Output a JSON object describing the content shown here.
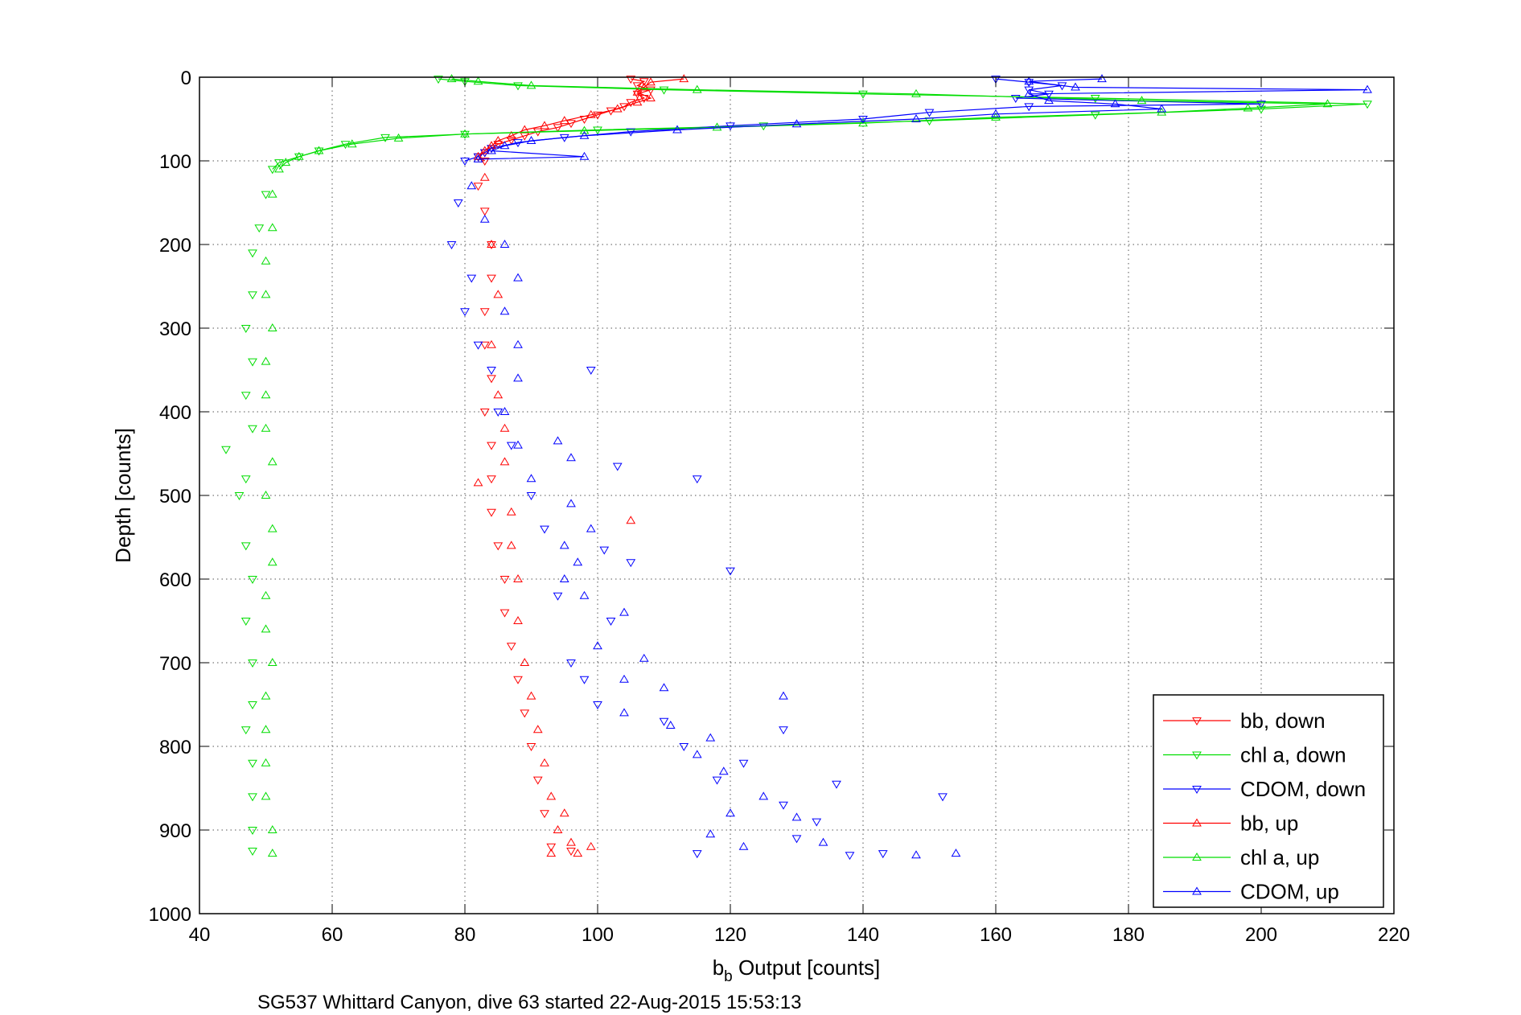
{
  "chart_data": {
    "type": "scatter",
    "xlabel_main": "b",
    "xlabel_sub": "b",
    "xlabel_rest": " Output [counts]",
    "ylabel": "Depth [counts]",
    "caption": "SG537 Whittard Canyon, dive 63 started 22-Aug-2015 15:53:13",
    "xlim": [
      40,
      220
    ],
    "ylim": [
      0,
      1000
    ],
    "y_reversed": true,
    "grid": true,
    "legend_position": "bottom-right",
    "xticks": [
      40,
      60,
      80,
      100,
      120,
      140,
      160,
      180,
      200,
      220
    ],
    "yticks": [
      0,
      100,
      200,
      300,
      400,
      500,
      600,
      700,
      800,
      900,
      1000
    ],
    "series": [
      {
        "name": "bb, down",
        "color": "#ff0000",
        "marker": "triangle-down",
        "connected_until": 100,
        "points": [
          [
            105,
            2
          ],
          [
            107,
            5
          ],
          [
            106,
            10
          ],
          [
            108,
            15
          ],
          [
            106,
            20
          ],
          [
            107,
            25
          ],
          [
            105,
            30
          ],
          [
            104,
            35
          ],
          [
            102,
            40
          ],
          [
            100,
            45
          ],
          [
            98,
            50
          ],
          [
            96,
            55
          ],
          [
            94,
            60
          ],
          [
            91,
            65
          ],
          [
            89,
            70
          ],
          [
            87,
            75
          ],
          [
            85,
            80
          ],
          [
            84,
            85
          ],
          [
            83,
            90
          ],
          [
            82,
            95
          ],
          [
            83,
            100
          ],
          [
            82,
            130
          ],
          [
            83,
            160
          ],
          [
            84,
            200
          ],
          [
            84,
            240
          ],
          [
            83,
            280
          ],
          [
            83,
            320
          ],
          [
            84,
            360
          ],
          [
            83,
            400
          ],
          [
            84,
            440
          ],
          [
            84,
            480
          ],
          [
            84,
            520
          ],
          [
            85,
            560
          ],
          [
            86,
            600
          ],
          [
            86,
            640
          ],
          [
            87,
            680
          ],
          [
            88,
            720
          ],
          [
            89,
            760
          ],
          [
            90,
            800
          ],
          [
            91,
            840
          ],
          [
            92,
            880
          ],
          [
            93,
            920
          ],
          [
            96,
            925
          ]
        ]
      },
      {
        "name": "chl a, down",
        "color": "#00dd00",
        "marker": "triangle-down",
        "connected_until": 110,
        "points": [
          [
            76,
            2
          ],
          [
            80,
            5
          ],
          [
            88,
            10
          ],
          [
            110,
            15
          ],
          [
            140,
            20
          ],
          [
            175,
            25
          ],
          [
            216,
            32
          ],
          [
            200,
            38
          ],
          [
            175,
            45
          ],
          [
            150,
            52
          ],
          [
            125,
            58
          ],
          [
            100,
            63
          ],
          [
            80,
            68
          ],
          [
            68,
            72
          ],
          [
            62,
            80
          ],
          [
            58,
            88
          ],
          [
            55,
            95
          ],
          [
            52,
            102
          ],
          [
            51,
            110
          ],
          [
            50,
            140
          ],
          [
            49,
            180
          ],
          [
            48,
            210
          ],
          [
            48,
            260
          ],
          [
            47,
            300
          ],
          [
            48,
            340
          ],
          [
            47,
            380
          ],
          [
            48,
            420
          ],
          [
            44,
            445
          ],
          [
            47,
            480
          ],
          [
            46,
            500
          ],
          [
            47,
            560
          ],
          [
            48,
            600
          ],
          [
            47,
            650
          ],
          [
            48,
            700
          ],
          [
            48,
            750
          ],
          [
            47,
            780
          ],
          [
            48,
            820
          ],
          [
            48,
            860
          ],
          [
            48,
            900
          ],
          [
            48,
            925
          ]
        ]
      },
      {
        "name": "CDOM, down",
        "color": "#0000ff",
        "marker": "triangle-down",
        "connected_until": 100,
        "points": [
          [
            160,
            2
          ],
          [
            165,
            6
          ],
          [
            170,
            10
          ],
          [
            165,
            15
          ],
          [
            168,
            20
          ],
          [
            163,
            25
          ],
          [
            200,
            32
          ],
          [
            165,
            35
          ],
          [
            150,
            42
          ],
          [
            140,
            50
          ],
          [
            120,
            58
          ],
          [
            105,
            65
          ],
          [
            95,
            72
          ],
          [
            88,
            78
          ],
          [
            84,
            85
          ],
          [
            83,
            90
          ],
          [
            82,
            95
          ],
          [
            80,
            100
          ],
          [
            79,
            150
          ],
          [
            78,
            200
          ],
          [
            81,
            240
          ],
          [
            80,
            280
          ],
          [
            82,
            320
          ],
          [
            84,
            350
          ],
          [
            99,
            350
          ],
          [
            85,
            400
          ],
          [
            87,
            440
          ],
          [
            103,
            465
          ],
          [
            115,
            480
          ],
          [
            90,
            500
          ],
          [
            92,
            540
          ],
          [
            101,
            565
          ],
          [
            105,
            580
          ],
          [
            120,
            590
          ],
          [
            94,
            620
          ],
          [
            102,
            650
          ],
          [
            96,
            700
          ],
          [
            98,
            720
          ],
          [
            100,
            750
          ],
          [
            110,
            770
          ],
          [
            113,
            800
          ],
          [
            122,
            820
          ],
          [
            118,
            840
          ],
          [
            128,
            780
          ],
          [
            136,
            845
          ],
          [
            152,
            860
          ],
          [
            128,
            870
          ],
          [
            133,
            890
          ],
          [
            130,
            910
          ],
          [
            138,
            930
          ],
          [
            143,
            928
          ],
          [
            115,
            928
          ]
        ]
      },
      {
        "name": "bb, up",
        "color": "#ff0000",
        "marker": "triangle-up",
        "connected_until": 100,
        "points": [
          [
            113,
            2
          ],
          [
            108,
            6
          ],
          [
            107,
            12
          ],
          [
            106,
            18
          ],
          [
            108,
            25
          ],
          [
            106,
            30
          ],
          [
            103,
            38
          ],
          [
            99,
            45
          ],
          [
            95,
            52
          ],
          [
            92,
            58
          ],
          [
            89,
            63
          ],
          [
            87,
            70
          ],
          [
            85,
            76
          ],
          [
            84,
            82
          ],
          [
            83,
            88
          ],
          [
            82,
            95
          ],
          [
            83,
            120
          ],
          [
            84,
            200
          ],
          [
            85,
            260
          ],
          [
            84,
            320
          ],
          [
            85,
            380
          ],
          [
            86,
            420
          ],
          [
            86,
            460
          ],
          [
            82,
            485
          ],
          [
            87,
            520
          ],
          [
            105,
            530
          ],
          [
            87,
            560
          ],
          [
            88,
            600
          ],
          [
            88,
            650
          ],
          [
            89,
            700
          ],
          [
            90,
            740
          ],
          [
            91,
            780
          ],
          [
            92,
            820
          ],
          [
            93,
            860
          ],
          [
            95,
            880
          ],
          [
            94,
            900
          ],
          [
            96,
            915
          ],
          [
            99,
            920
          ],
          [
            97,
            928
          ],
          [
            93,
            928
          ]
        ]
      },
      {
        "name": "chl a, up",
        "color": "#00dd00",
        "marker": "triangle-up",
        "connected_until": 110,
        "points": [
          [
            78,
            2
          ],
          [
            82,
            5
          ],
          [
            90,
            10
          ],
          [
            115,
            15
          ],
          [
            148,
            20
          ],
          [
            182,
            28
          ],
          [
            210,
            32
          ],
          [
            198,
            37
          ],
          [
            185,
            42
          ],
          [
            160,
            48
          ],
          [
            140,
            55
          ],
          [
            118,
            60
          ],
          [
            98,
            64
          ],
          [
            80,
            68
          ],
          [
            70,
            73
          ],
          [
            63,
            80
          ],
          [
            58,
            88
          ],
          [
            55,
            95
          ],
          [
            53,
            102
          ],
          [
            52,
            110
          ],
          [
            51,
            140
          ],
          [
            51,
            180
          ],
          [
            50,
            220
          ],
          [
            50,
            260
          ],
          [
            51,
            300
          ],
          [
            50,
            340
          ],
          [
            50,
            380
          ],
          [
            50,
            420
          ],
          [
            51,
            460
          ],
          [
            50,
            500
          ],
          [
            51,
            540
          ],
          [
            51,
            580
          ],
          [
            50,
            620
          ],
          [
            50,
            660
          ],
          [
            51,
            700
          ],
          [
            50,
            740
          ],
          [
            50,
            780
          ],
          [
            50,
            820
          ],
          [
            50,
            860
          ],
          [
            51,
            900
          ],
          [
            51,
            928
          ]
        ]
      },
      {
        "name": "CDOM, up",
        "color": "#0000ff",
        "marker": "triangle-up",
        "connected_until": 100,
        "points": [
          [
            176,
            2
          ],
          [
            165,
            5
          ],
          [
            172,
            12
          ],
          [
            216,
            15
          ],
          [
            165,
            20
          ],
          [
            168,
            28
          ],
          [
            178,
            32
          ],
          [
            185,
            38
          ],
          [
            160,
            44
          ],
          [
            148,
            50
          ],
          [
            130,
            56
          ],
          [
            112,
            63
          ],
          [
            98,
            70
          ],
          [
            90,
            76
          ],
          [
            86,
            82
          ],
          [
            84,
            88
          ],
          [
            98,
            95
          ],
          [
            82,
            98
          ],
          [
            81,
            130
          ],
          [
            83,
            170
          ],
          [
            86,
            200
          ],
          [
            88,
            240
          ],
          [
            86,
            280
          ],
          [
            88,
            320
          ],
          [
            88,
            360
          ],
          [
            86,
            400
          ],
          [
            88,
            440
          ],
          [
            94,
            435
          ],
          [
            96,
            455
          ],
          [
            90,
            480
          ],
          [
            96,
            510
          ],
          [
            99,
            540
          ],
          [
            95,
            560
          ],
          [
            97,
            580
          ],
          [
            95,
            600
          ],
          [
            98,
            620
          ],
          [
            104,
            640
          ],
          [
            100,
            680
          ],
          [
            107,
            695
          ],
          [
            104,
            720
          ],
          [
            110,
            730
          ],
          [
            111,
            775
          ],
          [
            117,
            790
          ],
          [
            104,
            760
          ],
          [
            115,
            810
          ],
          [
            119,
            830
          ],
          [
            128,
            740
          ],
          [
            125,
            860
          ],
          [
            120,
            880
          ],
          [
            117,
            905
          ],
          [
            130,
            885
          ],
          [
            134,
            915
          ],
          [
            148,
            930
          ],
          [
            154,
            928
          ],
          [
            122,
            920
          ]
        ]
      }
    ]
  }
}
